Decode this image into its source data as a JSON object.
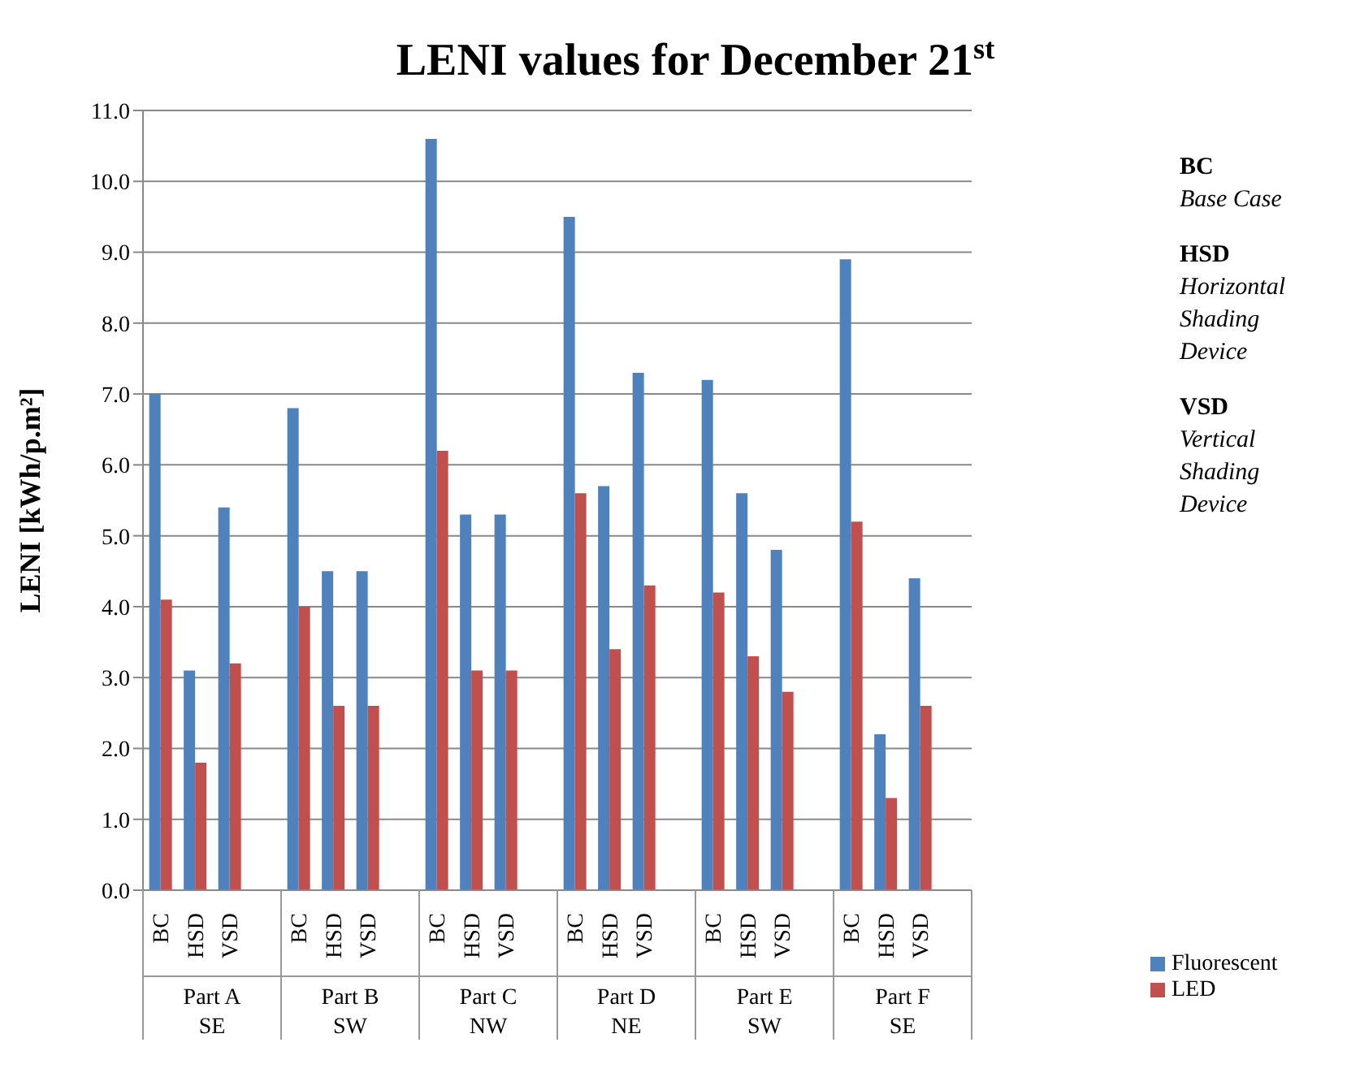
{
  "chart_data": {
    "type": "bar",
    "title": "LENI values for December 21$^{st}$",
    "ylabel": "LENI [kWh/p.m²]",
    "categories": [
      "BC",
      "HSD",
      "VSD",
      null,
      "BC",
      "HSD",
      "VSD",
      null,
      "BC",
      "HSD",
      "VSD",
      null,
      "BC",
      "HSD",
      "VSD",
      null,
      "BC",
      "HSD",
      "VSD",
      null,
      "BC",
      "HSD",
      "VSD",
      null
    ],
    "series": [
      {
        "name": "Fluorescent",
        "color": "#4f81bd",
        "values": [
          7.0,
          3.1,
          5.4,
          null,
          6.8,
          4.5,
          4.5,
          null,
          10.6,
          5.3,
          5.3,
          null,
          9.5,
          5.7,
          7.3,
          null,
          7.2,
          5.6,
          4.8,
          null,
          8.9,
          2.2,
          4.4,
          null
        ]
      },
      {
        "name": "LED",
        "color": "#c0504d",
        "values": [
          4.1,
          1.8,
          3.2,
          null,
          4.0,
          2.6,
          2.6,
          null,
          6.2,
          3.1,
          3.1,
          null,
          5.6,
          3.4,
          4.3,
          null,
          4.2,
          3.3,
          2.8,
          null,
          5.2,
          1.3,
          2.6,
          null
        ]
      }
    ],
    "ylim": [
      0,
      11
    ],
    "yticks": [
      {
        "value": 0,
        "label": "0.0"
      },
      {
        "value": 1,
        "label": "1.0"
      },
      {
        "value": 2,
        "label": "2.0"
      },
      {
        "value": 3,
        "label": "3.0"
      },
      {
        "value": 4,
        "label": "4.0"
      },
      {
        "value": 5,
        "label": "5.0"
      },
      {
        "value": 6,
        "label": "6.0"
      },
      {
        "value": 7,
        "label": "7.0"
      },
      {
        "value": 8,
        "label": "8.0"
      },
      {
        "value": 9,
        "label": "9.0"
      },
      {
        "value": 10,
        "label": "10.0"
      },
      {
        "value": 11,
        "label": "11.0"
      }
    ],
    "grid": "y",
    "legend": "bottom right",
    "annotations": [
      "Part A\nSE",
      "Part B\nSW",
      "Part C\nNW",
      "Part D\nNE",
      "Part E\nSW",
      "Part F\nSE",
      "BC",
      "Base Case",
      "HSD",
      "Horizontal Shading Device",
      "VSD",
      "Vertical Shading Device"
    ]
  }
}
